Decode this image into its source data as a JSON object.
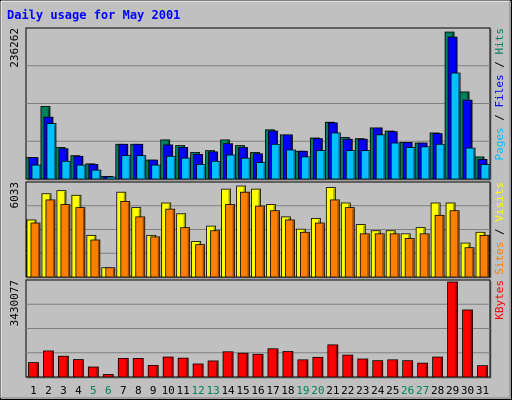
{
  "title": "Daily usage for May 2001",
  "colors": {
    "background": "#c0c0c0",
    "title": "#0000ff",
    "hits": "#00805c",
    "files": "#0000ff",
    "pages": "#00c0ff",
    "visits": "#ffff00",
    "sites": "#ff8000",
    "kbytes": "#ff0000",
    "weekend_label": "#00805c",
    "weekday_label": "#000000"
  },
  "chart_data": [
    {
      "type": "bar",
      "panel": "hits-files-pages",
      "ymax_label": "236262",
      "ylim": [
        0,
        236262
      ],
      "categories": [
        "1",
        "2",
        "3",
        "4",
        "5",
        "6",
        "7",
        "8",
        "9",
        "10",
        "11",
        "12",
        "13",
        "14",
        "15",
        "16",
        "17",
        "18",
        "19",
        "20",
        "21",
        "22",
        "23",
        "24",
        "25",
        "26",
        "27",
        "28",
        "29",
        "30",
        "31"
      ],
      "weekend_days": [
        "5",
        "6",
        "12",
        "13",
        "19",
        "20",
        "26",
        "27"
      ],
      "legend": [
        {
          "text": "Pages",
          "color": "#00c0ff"
        },
        {
          "text": " / ",
          "color": "#000000"
        },
        {
          "text": "Files",
          "color": "#0000ff"
        },
        {
          "text": " / ",
          "color": "#000000"
        },
        {
          "text": "Hits",
          "color": "#00805c"
        }
      ],
      "series": [
        {
          "name": "Hits",
          "values": [
            34000,
            115000,
            50000,
            37000,
            24000,
            4000,
            55000,
            55000,
            30000,
            62000,
            53000,
            42000,
            45000,
            62000,
            53000,
            42000,
            78000,
            70000,
            44000,
            65000,
            90000,
            66000,
            64000,
            81000,
            76000,
            58000,
            57000,
            73000,
            233000,
            138000,
            35000
          ]
        },
        {
          "name": "Files",
          "values": [
            34000,
            98000,
            48000,
            36000,
            23000,
            4000,
            55000,
            55000,
            30000,
            54000,
            50000,
            39000,
            43000,
            56000,
            50000,
            40000,
            76000,
            70000,
            44000,
            64000,
            89000,
            63000,
            63000,
            81000,
            75000,
            58000,
            57000,
            72000,
            225000,
            125000,
            31000
          ]
        },
        {
          "name": "Pages",
          "values": [
            22000,
            88000,
            28000,
            22000,
            14000,
            3000,
            37000,
            37000,
            22000,
            36000,
            33000,
            23000,
            28000,
            38000,
            33000,
            26000,
            55000,
            46000,
            35000,
            45000,
            73000,
            45000,
            45000,
            70000,
            57000,
            50000,
            51000,
            55000,
            168000,
            49000,
            23000
          ]
        }
      ]
    },
    {
      "type": "bar",
      "panel": "visits-sites",
      "ymax_label": "6033",
      "ylim": [
        0,
        6033
      ],
      "categories": [
        "1",
        "2",
        "3",
        "4",
        "5",
        "6",
        "7",
        "8",
        "9",
        "10",
        "11",
        "12",
        "13",
        "14",
        "15",
        "16",
        "17",
        "18",
        "19",
        "20",
        "21",
        "22",
        "23",
        "24",
        "25",
        "26",
        "27",
        "28",
        "29",
        "30",
        "31"
      ],
      "legend": [
        {
          "text": "Sites",
          "color": "#ff8000"
        },
        {
          "text": " / ",
          "color": "#000000"
        },
        {
          "text": "Visits",
          "color": "#ffff00"
        }
      ],
      "series": [
        {
          "name": "Visits",
          "values": [
            3700,
            5400,
            5600,
            5300,
            2700,
            600,
            5500,
            4500,
            2700,
            4800,
            4100,
            2300,
            3300,
            5700,
            5900,
            5700,
            4700,
            3900,
            3100,
            3800,
            5800,
            4800,
            3400,
            3000,
            3000,
            2800,
            3200,
            4800,
            4800,
            2200,
            2900
          ]
        },
        {
          "name": "Sites",
          "values": [
            3500,
            5000,
            4700,
            4500,
            2400,
            600,
            4900,
            3900,
            2600,
            4400,
            3200,
            2100,
            3000,
            4700,
            5500,
            4600,
            4300,
            3700,
            2900,
            3500,
            5000,
            4500,
            2800,
            2800,
            2800,
            2500,
            2800,
            4000,
            4300,
            1900,
            2700
          ]
        }
      ]
    },
    {
      "type": "bar",
      "panel": "kbytes",
      "ymax_label": "3430077",
      "ylim": [
        0,
        3430077
      ],
      "categories": [
        "1",
        "2",
        "3",
        "4",
        "5",
        "6",
        "7",
        "8",
        "9",
        "10",
        "11",
        "12",
        "13",
        "14",
        "15",
        "16",
        "17",
        "18",
        "19",
        "20",
        "21",
        "22",
        "23",
        "24",
        "25",
        "26",
        "27",
        "28",
        "29",
        "30",
        "31"
      ],
      "legend": [
        {
          "text": "KBytes",
          "color": "#ff0000"
        }
      ],
      "series": [
        {
          "name": "KBytes",
          "values": [
            520000,
            940000,
            750000,
            630000,
            360000,
            90000,
            670000,
            670000,
            420000,
            720000,
            680000,
            470000,
            580000,
            910000,
            860000,
            820000,
            1020000,
            920000,
            620000,
            710000,
            1160000,
            790000,
            650000,
            590000,
            620000,
            590000,
            500000,
            720000,
            3430000,
            2420000,
            410000
          ]
        }
      ]
    }
  ]
}
